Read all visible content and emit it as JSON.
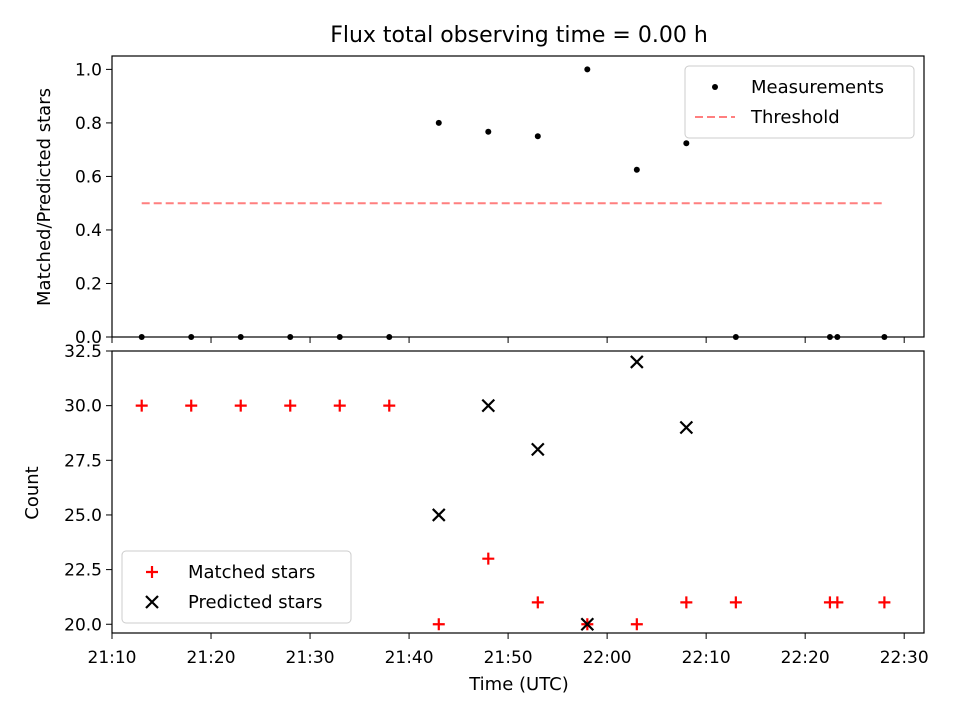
{
  "title": "Flux total observing time = 0.00 h",
  "colors": {
    "measurement": "#000000",
    "threshold": "#ff7f7f",
    "matched": "#ff0000",
    "predicted": "#000000"
  },
  "chart_data": [
    {
      "type": "scatter",
      "title": "Flux total observing time = 0.00 h",
      "xlabel": "",
      "ylabel": "Matched/Predicted stars",
      "ylim": [
        0,
        1.05
      ],
      "yticks": [
        "0.0",
        "0.2",
        "0.4",
        "0.6",
        "0.8",
        "1.0"
      ],
      "legend_position": "top-right",
      "series": [
        {
          "name": "Measurements",
          "marker": "dot",
          "x": [
            "21:13",
            "21:18",
            "21:23",
            "21:28",
            "21:33",
            "21:38",
            "21:43",
            "21:48",
            "21:53",
            "21:58",
            "22:03",
            "22:08",
            "22:13",
            "22:22:30",
            "22:23:15",
            "22:28"
          ],
          "y": [
            0,
            0,
            0,
            0,
            0,
            0,
            0.8,
            0.767,
            0.75,
            1.0,
            0.625,
            0.724,
            0,
            0,
            0,
            0
          ]
        },
        {
          "name": "Threshold",
          "marker": "dashed-line",
          "x": [
            "21:13",
            "22:28"
          ],
          "y": [
            0.5,
            0.5
          ]
        }
      ]
    },
    {
      "type": "scatter",
      "xlabel": "Time (UTC)",
      "ylabel": "Count",
      "ylim": [
        19.6,
        32.5
      ],
      "yticks": [
        "20.0",
        "22.5",
        "25.0",
        "27.5",
        "30.0",
        "32.5"
      ],
      "xticks": [
        "21:10",
        "21:20",
        "21:30",
        "21:40",
        "21:50",
        "22:00",
        "22:10",
        "22:20",
        "22:30"
      ],
      "xlim": [
        "21:10",
        "22:32"
      ],
      "legend_position": "bottom-left",
      "series": [
        {
          "name": "Matched stars",
          "marker": "plus",
          "x": [
            "21:13",
            "21:18",
            "21:23",
            "21:28",
            "21:33",
            "21:38",
            "21:43",
            "21:48",
            "21:53",
            "21:58",
            "22:03",
            "22:08",
            "22:13",
            "22:22:30",
            "22:23:15",
            "22:28"
          ],
          "y": [
            30,
            30,
            30,
            30,
            30,
            30,
            20,
            23,
            21,
            20,
            20,
            21,
            21,
            21,
            21,
            21
          ]
        },
        {
          "name": "Predicted stars",
          "marker": "x",
          "x": [
            "21:43",
            "21:48",
            "21:53",
            "21:58",
            "22:03",
            "22:08"
          ],
          "y": [
            25,
            30,
            28,
            20,
            32,
            29
          ]
        }
      ]
    }
  ]
}
